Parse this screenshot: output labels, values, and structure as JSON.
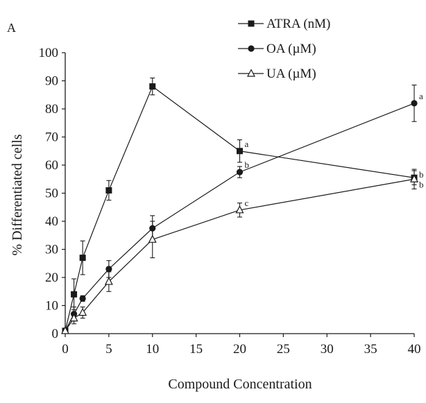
{
  "chart_data": {
    "type": "line",
    "panel_label": "A",
    "title": "",
    "xlabel": "Compound Concentration",
    "ylabel": "% Differentiated cells",
    "xlim": [
      0,
      40
    ],
    "ylim": [
      0,
      100
    ],
    "x_ticks": [
      0,
      5,
      10,
      15,
      20,
      25,
      30,
      35,
      40
    ],
    "y_ticks": [
      0,
      10,
      20,
      30,
      40,
      50,
      60,
      70,
      80,
      90,
      100
    ],
    "grid": false,
    "legend_position": "top-right",
    "series": [
      {
        "name": "ATRA (nM)",
        "marker": "square",
        "color": "#1a1a1a",
        "x": [
          0,
          1,
          2,
          5,
          10,
          20,
          40
        ],
        "y": [
          1,
          14,
          27,
          51,
          88,
          65,
          55.5
        ],
        "err": [
          0.5,
          5.5,
          6,
          3.5,
          3,
          4,
          2.5
        ]
      },
      {
        "name": "OA (µM)",
        "marker": "circle",
        "color": "#1a1a1a",
        "x": [
          0,
          1,
          2,
          5,
          10,
          20,
          40
        ],
        "y": [
          1,
          7,
          12.5,
          23,
          37.5,
          57.5,
          82
        ],
        "err": [
          0.5,
          2.5,
          1,
          3,
          4.5,
          2,
          6.5
        ]
      },
      {
        "name": "UA (µM)",
        "marker": "triangle-open",
        "color": "#1a1a1a",
        "x": [
          0,
          1,
          2,
          5,
          10,
          20,
          40
        ],
        "y": [
          1,
          5.5,
          7.5,
          18.5,
          33.5,
          44,
          55
        ],
        "err": [
          0.5,
          2,
          2,
          3.5,
          6.5,
          2.5,
          3.5
        ]
      }
    ],
    "annotations": [
      {
        "text": "a",
        "series": "ATRA (nM)",
        "x": 20
      },
      {
        "text": "b",
        "series": "OA (µM)",
        "x": 20
      },
      {
        "text": "c",
        "series": "UA (µM)",
        "x": 20
      },
      {
        "text": "a",
        "series": "OA (µM)",
        "x": 40
      },
      {
        "text": "b",
        "series": "ATRA (nM)",
        "x": 40
      },
      {
        "text": "b",
        "series": "UA (µM)",
        "x": 40
      }
    ]
  }
}
